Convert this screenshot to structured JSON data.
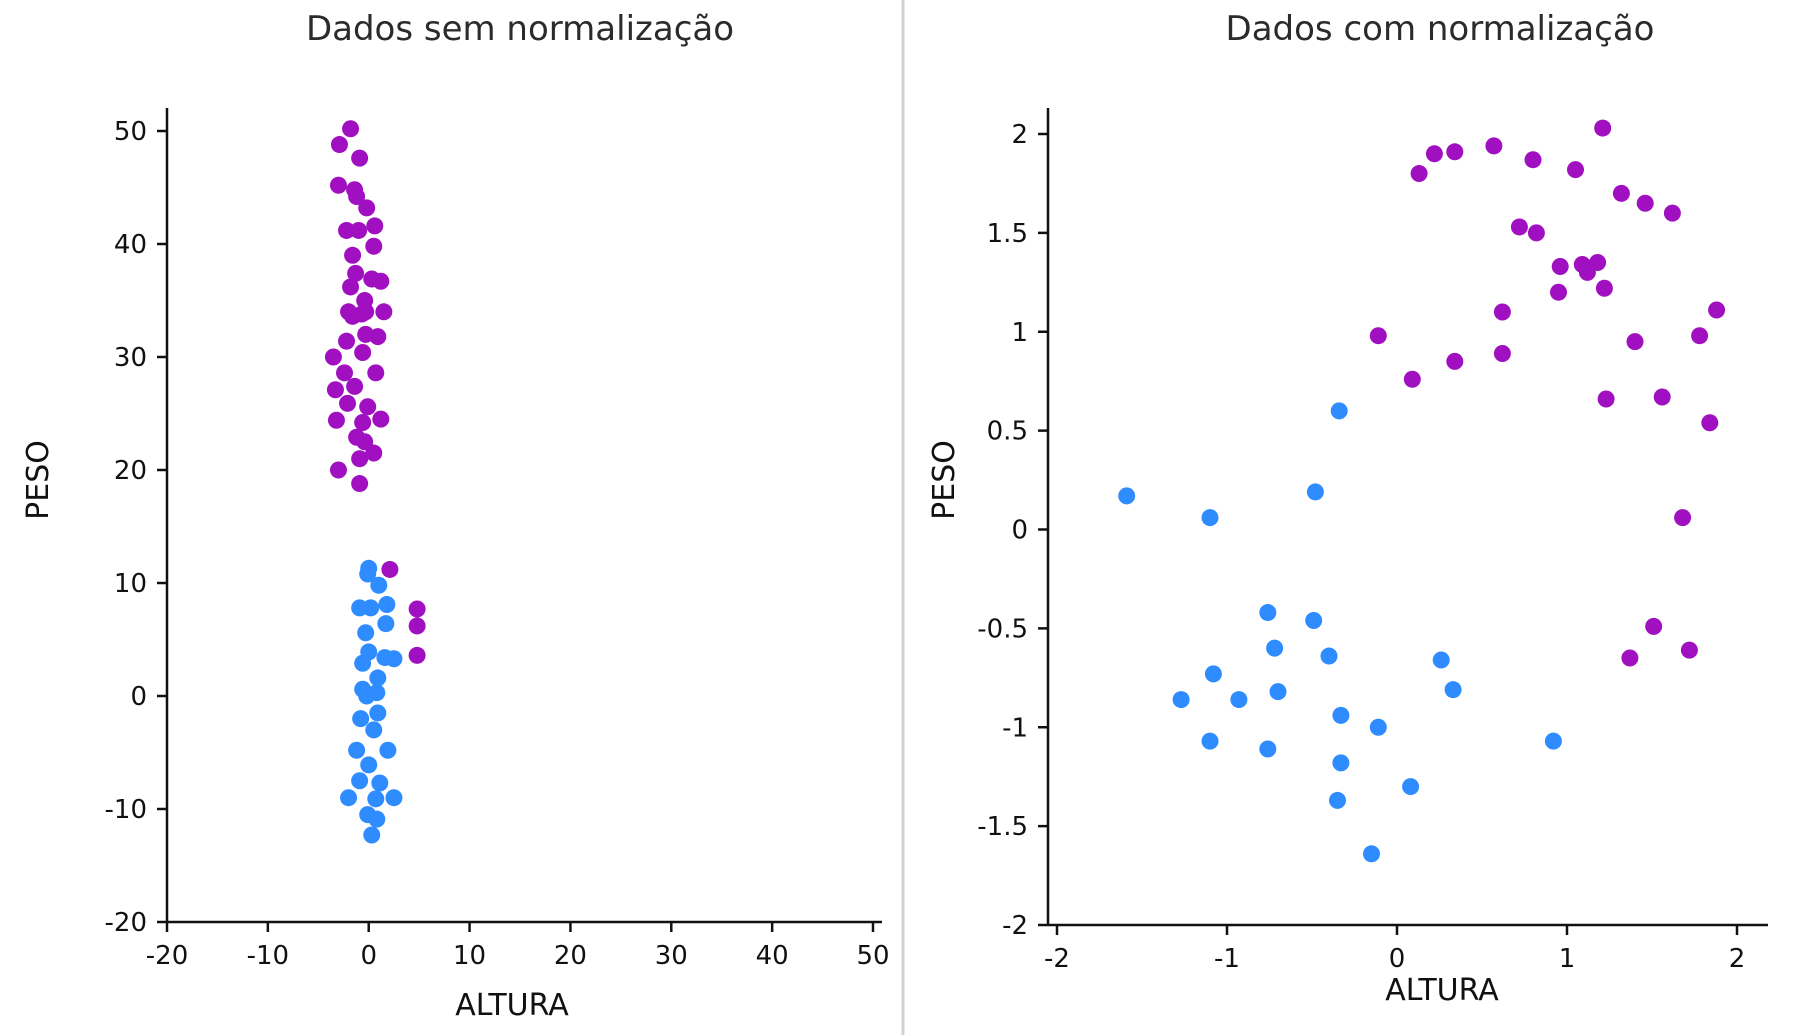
{
  "colors": {
    "group_a": "#a010c0",
    "group_b": "#2f8cff"
  },
  "chart_data": [
    {
      "type": "scatter",
      "title": "Dados sem normalização",
      "xlabel": "ALTURA",
      "ylabel": "PESO",
      "xlim": [
        -20,
        50
      ],
      "ylim": [
        -20,
        50
      ],
      "xticks": [
        "-20",
        "-10",
        "0",
        "10",
        "20",
        "30",
        "40",
        "50"
      ],
      "yticks": [
        "-20",
        "-10",
        "0",
        "10",
        "20",
        "30",
        "40",
        "50"
      ],
      "grid": false,
      "legend": "none",
      "series": [
        {
          "color": "#a010c0",
          "points": [
            [
              -1.8,
              50.2
            ],
            [
              -2.9,
              48.8
            ],
            [
              -0.9,
              47.6
            ],
            [
              -3.0,
              45.2
            ],
            [
              -1.4,
              44.8
            ],
            [
              -1.2,
              44.2
            ],
            [
              -0.2,
              43.2
            ],
            [
              -2.2,
              41.2
            ],
            [
              -1.0,
              41.2
            ],
            [
              0.6,
              41.6
            ],
            [
              0.5,
              39.8
            ],
            [
              -1.6,
              39.0
            ],
            [
              -1.3,
              37.4
            ],
            [
              0.3,
              36.9
            ],
            [
              1.2,
              36.7
            ],
            [
              -1.8,
              36.2
            ],
            [
              -0.4,
              35.0
            ],
            [
              -2.0,
              34.0
            ],
            [
              -1.6,
              33.6
            ],
            [
              -0.7,
              33.8
            ],
            [
              -0.3,
              34.0
            ],
            [
              1.5,
              34.0
            ],
            [
              -0.3,
              32.0
            ],
            [
              0.9,
              31.8
            ],
            [
              -2.2,
              31.4
            ],
            [
              -0.6,
              30.4
            ],
            [
              -3.5,
              30.0
            ],
            [
              -2.4,
              28.6
            ],
            [
              0.7,
              28.6
            ],
            [
              -1.4,
              27.4
            ],
            [
              -3.3,
              27.1
            ],
            [
              -2.1,
              25.9
            ],
            [
              -0.1,
              25.6
            ],
            [
              -3.2,
              24.4
            ],
            [
              -0.6,
              24.2
            ],
            [
              1.2,
              24.5
            ],
            [
              -1.2,
              22.9
            ],
            [
              -0.4,
              22.5
            ],
            [
              -0.9,
              21.0
            ],
            [
              0.5,
              21.5
            ],
            [
              -3.0,
              20.0
            ],
            [
              -0.9,
              18.8
            ],
            [
              2.1,
              11.2
            ],
            [
              4.8,
              7.7
            ],
            [
              4.8,
              6.2
            ],
            [
              4.8,
              3.6
            ]
          ]
        },
        {
          "color": "#2f8cff",
          "points": [
            [
              0.0,
              11.3
            ],
            [
              -0.1,
              10.8
            ],
            [
              1.0,
              9.8
            ],
            [
              -0.9,
              7.8
            ],
            [
              0.2,
              7.8
            ],
            [
              1.8,
              8.1
            ],
            [
              1.7,
              6.4
            ],
            [
              -0.3,
              5.6
            ],
            [
              0.0,
              3.9
            ],
            [
              1.6,
              3.4
            ],
            [
              2.5,
              3.3
            ],
            [
              -0.6,
              2.9
            ],
            [
              0.9,
              1.6
            ],
            [
              -0.6,
              0.6
            ],
            [
              -0.2,
              0.0
            ],
            [
              0.8,
              0.3
            ],
            [
              0.9,
              -1.5
            ],
            [
              -0.8,
              -2.0
            ],
            [
              0.5,
              -3.0
            ],
            [
              -1.2,
              -4.8
            ],
            [
              1.9,
              -4.8
            ],
            [
              0.0,
              -6.1
            ],
            [
              -0.9,
              -7.5
            ],
            [
              1.1,
              -7.7
            ],
            [
              -2.0,
              -9.0
            ],
            [
              0.7,
              -9.1
            ],
            [
              2.5,
              -9.0
            ],
            [
              -0.1,
              -10.5
            ],
            [
              0.8,
              -10.9
            ],
            [
              0.3,
              -12.3
            ]
          ]
        }
      ]
    },
    {
      "type": "scatter",
      "title": "Dados com normalização",
      "xlabel": "ALTURA",
      "ylabel": "PESO",
      "xlim": [
        -2,
        2.2
      ],
      "ylim": [
        -2,
        2.1
      ],
      "xticks": [
        "-2",
        "-1",
        "0",
        "1",
        "2"
      ],
      "yticks": [
        "-2",
        "-1.5",
        "-1",
        "-0.5",
        "0",
        "0.5",
        "1",
        "1.5",
        "2"
      ],
      "grid": false,
      "legend": "none",
      "series": [
        {
          "color": "#a010c0",
          "points": [
            [
              1.21,
              2.03
            ],
            [
              0.57,
              1.94
            ],
            [
              0.22,
              1.9
            ],
            [
              0.34,
              1.91
            ],
            [
              0.8,
              1.87
            ],
            [
              0.13,
              1.8
            ],
            [
              1.05,
              1.82
            ],
            [
              1.32,
              1.7
            ],
            [
              1.46,
              1.65
            ],
            [
              1.62,
              1.6
            ],
            [
              0.72,
              1.53
            ],
            [
              0.82,
              1.5
            ],
            [
              1.09,
              1.34
            ],
            [
              1.18,
              1.35
            ],
            [
              0.96,
              1.33
            ],
            [
              1.12,
              1.3
            ],
            [
              0.95,
              1.2
            ],
            [
              1.22,
              1.22
            ],
            [
              1.88,
              1.11
            ],
            [
              0.62,
              1.1
            ],
            [
              -0.11,
              0.98
            ],
            [
              1.78,
              0.98
            ],
            [
              1.4,
              0.95
            ],
            [
              0.62,
              0.89
            ],
            [
              0.34,
              0.85
            ],
            [
              0.09,
              0.76
            ],
            [
              1.56,
              0.67
            ],
            [
              1.23,
              0.66
            ],
            [
              1.84,
              0.54
            ],
            [
              1.68,
              0.06
            ],
            [
              1.51,
              -0.49
            ],
            [
              1.72,
              -0.61
            ],
            [
              1.37,
              -0.65
            ]
          ]
        },
        {
          "color": "#2f8cff",
          "points": [
            [
              -0.34,
              0.6
            ],
            [
              -1.59,
              0.17
            ],
            [
              -0.48,
              0.19
            ],
            [
              -1.1,
              0.06
            ],
            [
              -0.76,
              -0.42
            ],
            [
              -0.49,
              -0.46
            ],
            [
              -0.72,
              -0.6
            ],
            [
              -0.4,
              -0.64
            ],
            [
              0.26,
              -0.66
            ],
            [
              -1.08,
              -0.73
            ],
            [
              0.33,
              -0.81
            ],
            [
              -0.7,
              -0.82
            ],
            [
              -1.27,
              -0.86
            ],
            [
              -0.93,
              -0.86
            ],
            [
              -0.33,
              -0.94
            ],
            [
              -0.11,
              -1.0
            ],
            [
              0.92,
              -1.07
            ],
            [
              -1.1,
              -1.07
            ],
            [
              -0.76,
              -1.11
            ],
            [
              -0.33,
              -1.18
            ],
            [
              0.08,
              -1.3
            ],
            [
              -0.35,
              -1.37
            ],
            [
              -0.15,
              -1.64
            ]
          ]
        }
      ]
    }
  ]
}
